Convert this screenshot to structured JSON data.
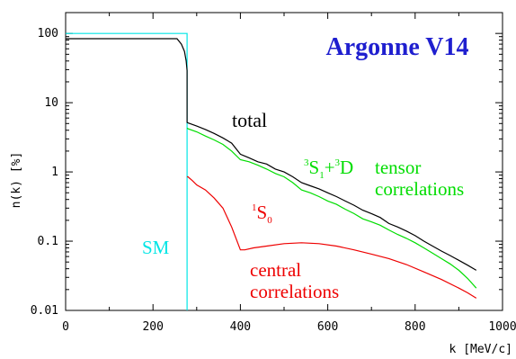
{
  "chart_data": {
    "type": "line",
    "title": "Argonne V14",
    "xlabel": "k [MeV/c]",
    "ylabel": "n(k) [%]",
    "xlim": [
      0,
      1000
    ],
    "ylim": [
      0.01,
      200
    ],
    "yscale": "log",
    "grid": false,
    "x_ticks": [
      "0",
      "200",
      "400",
      "600",
      "800",
      "1000"
    ],
    "y_ticks": [
      "0.01",
      "0.1",
      "1",
      "10",
      "100"
    ],
    "colors": {
      "title": "#1f1fcf",
      "total": "#000000",
      "tensor": "#00dd00",
      "central": "#ee0000",
      "sm": "#00e5e5"
    },
    "series": [
      {
        "key": "sm",
        "color": "#00e5e5",
        "x": [
          0,
          278,
          278
        ],
        "y": [
          100,
          100,
          0.01
        ]
      },
      {
        "key": "total",
        "color": "#000000",
        "x": [
          0,
          255,
          265,
          272,
          276,
          278,
          278,
          280,
          300,
          320,
          340,
          360,
          380,
          400,
          420,
          440,
          460,
          480,
          500,
          520,
          540,
          560,
          580,
          600,
          620,
          640,
          660,
          680,
          700,
          720,
          740,
          760,
          780,
          800,
          820,
          840,
          860,
          880,
          900,
          920,
          940
        ],
        "y": [
          84,
          84,
          70,
          55,
          40,
          29,
          5.2,
          5.1,
          4.6,
          4.1,
          3.6,
          3.1,
          2.6,
          1.8,
          1.6,
          1.4,
          1.3,
          1.1,
          1.0,
          0.85,
          0.7,
          0.63,
          0.57,
          0.5,
          0.44,
          0.38,
          0.33,
          0.28,
          0.25,
          0.22,
          0.18,
          0.16,
          0.14,
          0.12,
          0.1,
          0.085,
          0.072,
          0.062,
          0.053,
          0.045,
          0.038
        ]
      },
      {
        "key": "tensor",
        "color": "#00dd00",
        "x": [
          278,
          280,
          300,
          320,
          340,
          360,
          380,
          400,
          420,
          440,
          460,
          480,
          500,
          520,
          540,
          560,
          580,
          600,
          620,
          640,
          660,
          680,
          700,
          720,
          740,
          760,
          780,
          800,
          820,
          840,
          860,
          880,
          900,
          920,
          940
        ],
        "y": [
          4.3,
          4.2,
          3.8,
          3.3,
          2.9,
          2.5,
          2.0,
          1.5,
          1.4,
          1.25,
          1.1,
          0.95,
          0.85,
          0.7,
          0.55,
          0.5,
          0.44,
          0.38,
          0.34,
          0.29,
          0.25,
          0.21,
          0.19,
          0.17,
          0.145,
          0.125,
          0.11,
          0.095,
          0.08,
          0.067,
          0.056,
          0.047,
          0.038,
          0.029,
          0.021
        ]
      },
      {
        "key": "central",
        "color": "#ee0000",
        "x": [
          278,
          280,
          290,
          300,
          320,
          340,
          360,
          380,
          400,
          410,
          430,
          460,
          500,
          540,
          580,
          620,
          660,
          700,
          740,
          780,
          820,
          860,
          900,
          920,
          940
        ],
        "y": [
          0.85,
          0.85,
          0.75,
          0.65,
          0.55,
          0.42,
          0.3,
          0.16,
          0.075,
          0.075,
          0.08,
          0.085,
          0.092,
          0.095,
          0.092,
          0.085,
          0.075,
          0.065,
          0.056,
          0.046,
          0.036,
          0.028,
          0.021,
          0.018,
          0.015
        ]
      }
    ],
    "annotations": {
      "total": "total",
      "tensor_s": "S",
      "tensor_plus": "+",
      "tensor_d": "D",
      "tensor_sup_a": "3",
      "tensor_sub": "1",
      "tensor_sup_b": "3",
      "tensor_line1": "tensor",
      "tensor_line2": "correlations",
      "central_sup": "1",
      "central_s": "S",
      "central_sub": "0",
      "central_line1": "central",
      "central_line2": "correlations",
      "sm": "SM"
    }
  }
}
